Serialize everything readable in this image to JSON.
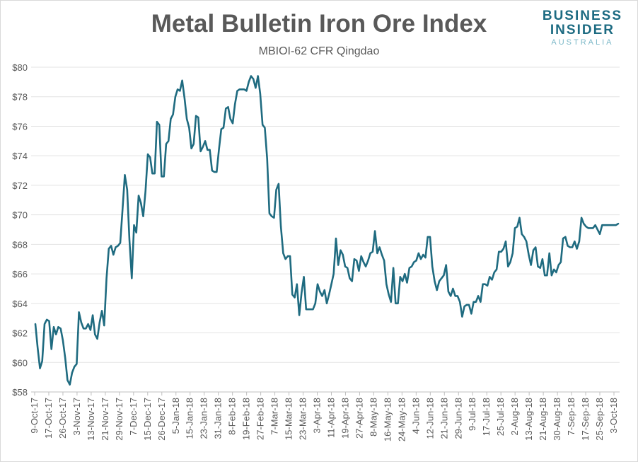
{
  "chart_data": {
    "type": "line",
    "title": "Metal Bulletin Iron Ore Index",
    "subtitle": "MBIOI-62 CFR Qingdao",
    "xlabel": "",
    "ylabel": "",
    "ylim": [
      58,
      80
    ],
    "yticks": [
      "$58",
      "$60",
      "$62",
      "$64",
      "$66",
      "$68",
      "$70",
      "$72",
      "$74",
      "$76",
      "$78",
      "$80"
    ],
    "grid": true,
    "line_color": "#1f6b80",
    "x_tick_labels": [
      "9-Oct-17",
      "17-Oct-17",
      "26-Oct-17",
      "3-Nov-17",
      "13-Nov-17",
      "21-Nov-17",
      "29-Nov-17",
      "7-Dec-17",
      "15-Dec-17",
      "26-Dec-17",
      "5-Jan-18",
      "15-Jan-18",
      "23-Jan-18",
      "31-Jan-18",
      "8-Feb-18",
      "19-Feb-18",
      "27-Feb-18",
      "7-Mar-18",
      "15-Mar-18",
      "23-Mar-18",
      "3-Apr-18",
      "11-Apr-18",
      "19-Apr-18",
      "27-Apr-18",
      "8-May-18",
      "16-May-18",
      "24-May-18",
      "4-Jun-18",
      "12-Jun-18",
      "21-Jun-18",
      "29-Jun-18",
      "9-Jul-18",
      "17-Jul-18",
      "25-Jul-18",
      "2-Aug-18",
      "13-Aug-18",
      "21-Aug-18",
      "30-Aug-18",
      "7-Sep-18",
      "17-Sep-18",
      "25-Sep-18",
      "3-Oct-18"
    ],
    "series": [
      {
        "values": [
          62.6,
          61,
          59.6,
          60.1,
          62.6,
          62.9,
          62.8,
          60.9,
          62.4,
          61.9,
          62.4,
          62.3,
          61.5,
          60.3,
          58.8,
          58.5,
          59.3,
          59.7,
          59.9,
          63.4,
          62.7,
          62.3,
          62.3,
          62.6,
          62.2,
          63.2,
          61.9,
          61.6,
          62.7,
          63.5,
          62.5,
          65.7,
          67.7,
          67.9,
          67.3,
          67.8,
          67.9,
          68.1,
          70.4,
          72.7,
          71.7,
          68.3,
          65.7,
          69.3,
          68.8,
          71.3,
          70.8,
          69.9,
          71.6,
          74.1,
          73.9,
          72.8,
          72.8,
          76.3,
          76.1,
          72.6,
          72.6,
          74.8,
          75,
          76.5,
          76.8,
          78,
          78.5,
          78.4,
          79.1,
          77.9,
          76.5,
          75.9,
          74.5,
          74.8,
          76.7,
          76.6,
          74.3,
          74.6,
          75,
          74.4,
          74.4,
          73,
          72.9,
          72.9,
          74.4,
          75.8,
          75.9,
          77.2,
          77.3,
          76.5,
          76.2,
          77.5,
          78.4,
          78.5,
          78.5,
          78.5,
          78.4,
          79,
          79.4,
          79.2,
          78.6,
          79.4,
          78.2,
          76.1,
          75.9,
          73.8,
          70.1,
          69.9,
          69.8,
          71.7,
          72.1,
          69.2,
          67.4,
          67,
          67.2,
          67.2,
          64.6,
          64.4,
          65.3,
          63.2,
          64.7,
          65.8,
          63.6,
          63.6,
          63.6,
          63.6,
          64,
          65.3,
          64.8,
          64.5,
          64.9,
          64,
          64.6,
          65.3,
          66,
          68.4,
          66.6,
          67.6,
          67.3,
          66.5,
          66.4,
          65.7,
          65.5,
          67,
          66.9,
          66.2,
          67.2,
          66.8,
          66.5,
          66.9,
          67.4,
          67.5,
          68.9,
          67.4,
          67.8,
          67.3,
          66.9,
          65.3,
          64.6,
          64.1,
          66.4,
          64,
          64,
          65.8,
          65.5,
          66,
          65.4,
          66.4,
          66.5,
          66.8,
          66.9,
          67.4,
          67,
          67.3,
          67.1,
          68.5,
          68.5,
          66.5,
          65.5,
          64.9,
          65.5,
          65.7,
          65.9,
          66.6,
          64.8,
          64.5,
          65,
          64.5,
          64.5,
          64.1,
          63.1,
          63.8,
          63.9,
          63.9,
          63.3,
          64.1,
          64.1,
          64.5,
          64.1,
          65.3,
          65.3,
          65.2,
          65.8,
          65.6,
          66.1,
          66.3,
          67.5,
          67.5,
          67.7,
          68.2,
          66.5,
          66.8,
          67.4,
          69.1,
          69.2,
          69.8,
          68.7,
          68.5,
          68.2,
          67.3,
          66.6,
          67.6,
          67.8,
          66.5,
          66.4,
          67,
          65.9,
          65.9,
          67.4,
          65.9,
          66.3,
          66.1,
          66.6,
          66.8,
          68.4,
          68.5,
          67.9,
          67.8,
          67.8,
          68.2,
          67.7,
          68.2,
          69.8,
          69.4,
          69.2,
          69.1,
          69.1,
          69.1,
          69.3,
          69,
          68.7,
          69.3,
          69.3,
          69.3,
          69.3,
          69.3,
          69.3,
          69.3,
          69.4
        ]
      }
    ]
  },
  "logo": {
    "line1": "BUSINESS",
    "line2": "INSIDER",
    "line3": "AUSTRALIA"
  }
}
